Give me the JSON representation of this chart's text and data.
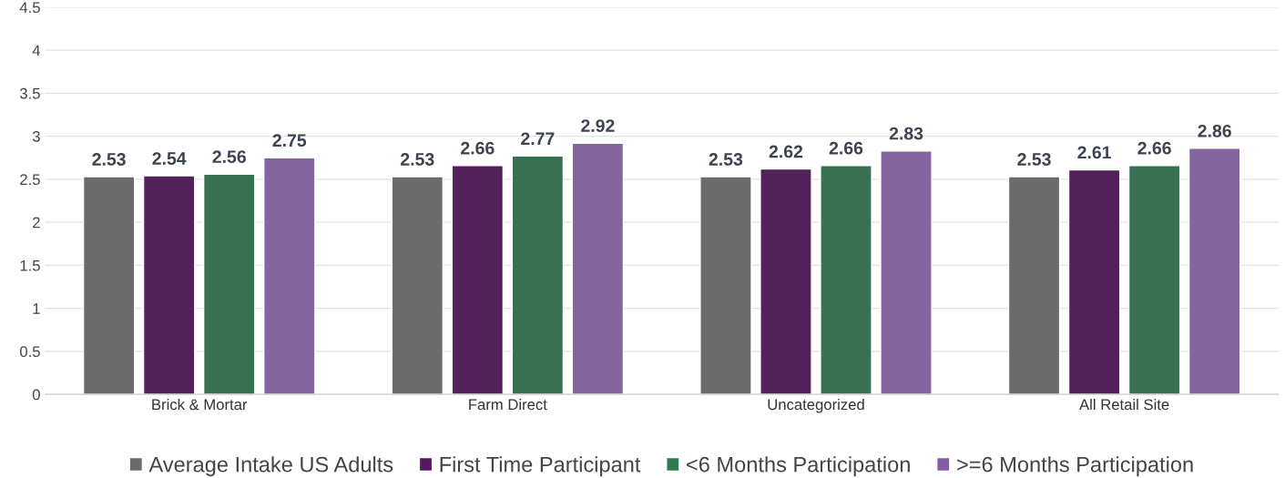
{
  "chart_data": {
    "type": "bar",
    "categories": [
      "Brick & Mortar",
      "Farm Direct",
      "Uncategorized",
      "All Retail Site"
    ],
    "series": [
      {
        "name": "Average Intake US Adults",
        "color": "#6b6b6b",
        "values": [
          2.53,
          2.53,
          2.53,
          2.53
        ]
      },
      {
        "name": "First Time Participant",
        "color": "#5a1764",
        "values": [
          2.54,
          2.66,
          2.62,
          2.61
        ]
      },
      {
        "name": "<6 Months Participation",
        "color": "#2f7a50",
        "values": [
          2.56,
          2.77,
          2.66,
          2.66
        ]
      },
      {
        "name": ">=6 Months Participation",
        "color": "#855ca9",
        "values": [
          2.75,
          2.92,
          2.83,
          2.86
        ]
      }
    ],
    "ylim": [
      0,
      4.5
    ],
    "yticks": [
      0,
      0.5,
      1,
      1.5,
      2,
      2.5,
      3,
      3.5,
      4,
      4.5
    ],
    "grid": "y",
    "legend": "bottom",
    "data_labels": true
  }
}
